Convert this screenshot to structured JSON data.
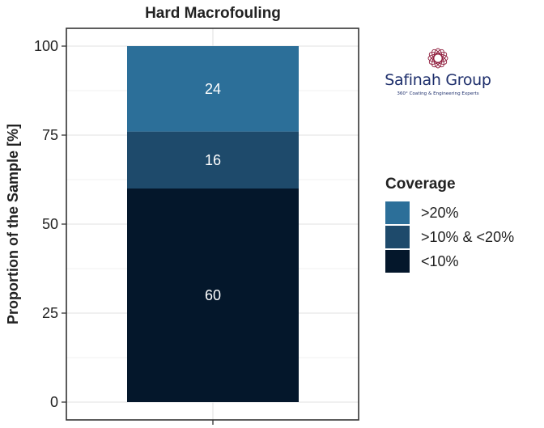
{
  "chart_data": {
    "type": "bar",
    "stacked": true,
    "title": "Hard Macrofouling",
    "xlabel": "",
    "ylabel": "Proportion of the Sample [%]",
    "ylim": [
      0,
      100
    ],
    "yticks": [
      0,
      25,
      50,
      75,
      100
    ],
    "yticklabels": [
      "0",
      "25",
      "50",
      "75",
      "100"
    ],
    "categories": [
      ""
    ],
    "series": [
      {
        "name": "<10%",
        "values": [
          60
        ],
        "color": "#04172b",
        "label": "60"
      },
      {
        "name": ">10% & <20%",
        "values": [
          16
        ],
        "color": "#1e4a6b",
        "label": "16"
      },
      {
        "name": ">20%",
        "values": [
          24
        ],
        "color": "#2c6f99",
        "label": "24"
      }
    ],
    "legend": {
      "title": "Coverage",
      "placement": "right",
      "order": [
        ">20%",
        ">10% & <20%",
        "<10%"
      ]
    },
    "grid": true,
    "theme": {
      "panel_background": "#ffffff",
      "grid_color": "#e6e6e6",
      "axis_color": "#333333",
      "text_color": "#222222",
      "label_color": "#ffffff"
    }
  },
  "logo": {
    "name": "Safinah Group",
    "tagline": "360° Coating & Engineering Experts",
    "color": "#1d2e6b",
    "emblem_color": "#8e1b3b"
  }
}
